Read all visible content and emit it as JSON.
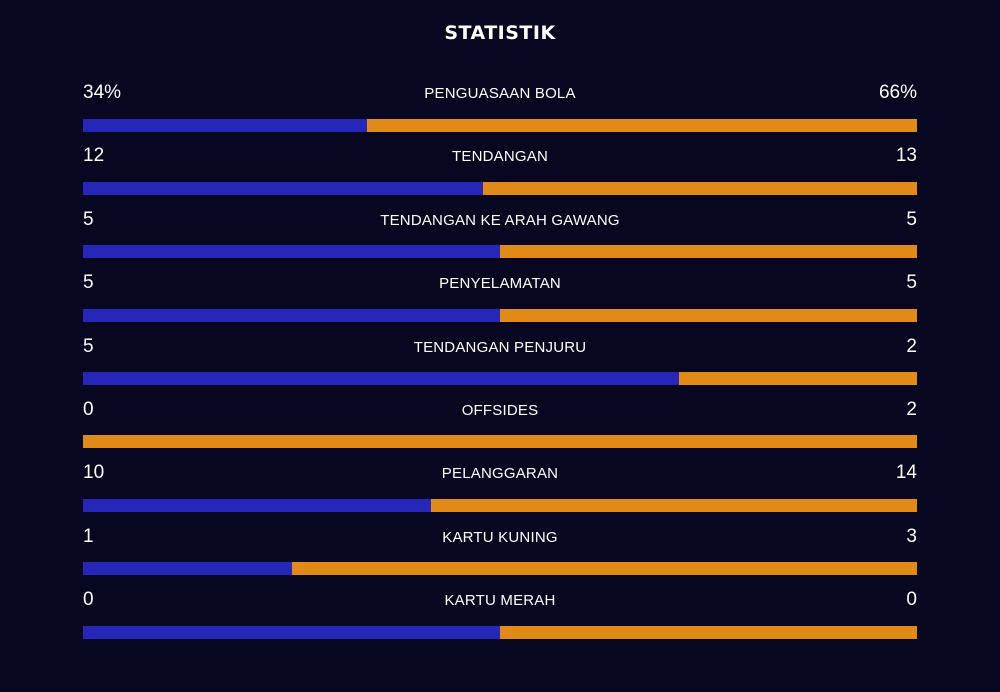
{
  "header": {
    "title": "STATISTIK"
  },
  "colors": {
    "background": "#070720",
    "home": "#2626b8",
    "away": "#e08a17"
  },
  "stats": [
    {
      "label": "PENGUASAAN BOLA",
      "home_text": "34%",
      "away_text": "66%",
      "home": 34,
      "away": 66
    },
    {
      "label": "TENDANGAN",
      "home_text": "12",
      "away_text": "13",
      "home": 12,
      "away": 13
    },
    {
      "label": "TENDANGAN KE ARAH GAWANG",
      "home_text": "5",
      "away_text": "5",
      "home": 5,
      "away": 5
    },
    {
      "label": "PENYELAMATAN",
      "home_text": "5",
      "away_text": "5",
      "home": 5,
      "away": 5
    },
    {
      "label": "TENDANGAN PENJURU",
      "home_text": "5",
      "away_text": "2",
      "home": 5,
      "away": 2
    },
    {
      "label": "OFFSIDES",
      "home_text": "0",
      "away_text": "2",
      "home": 0,
      "away": 2
    },
    {
      "label": "PELANGGARAN",
      "home_text": "10",
      "away_text": "14",
      "home": 10,
      "away": 14
    },
    {
      "label": "KARTU KUNING",
      "home_text": "1",
      "away_text": "3",
      "home": 1,
      "away": 3
    },
    {
      "label": "KARTU MERAH",
      "home_text": "0",
      "away_text": "0",
      "home": 0,
      "away": 0
    }
  ]
}
